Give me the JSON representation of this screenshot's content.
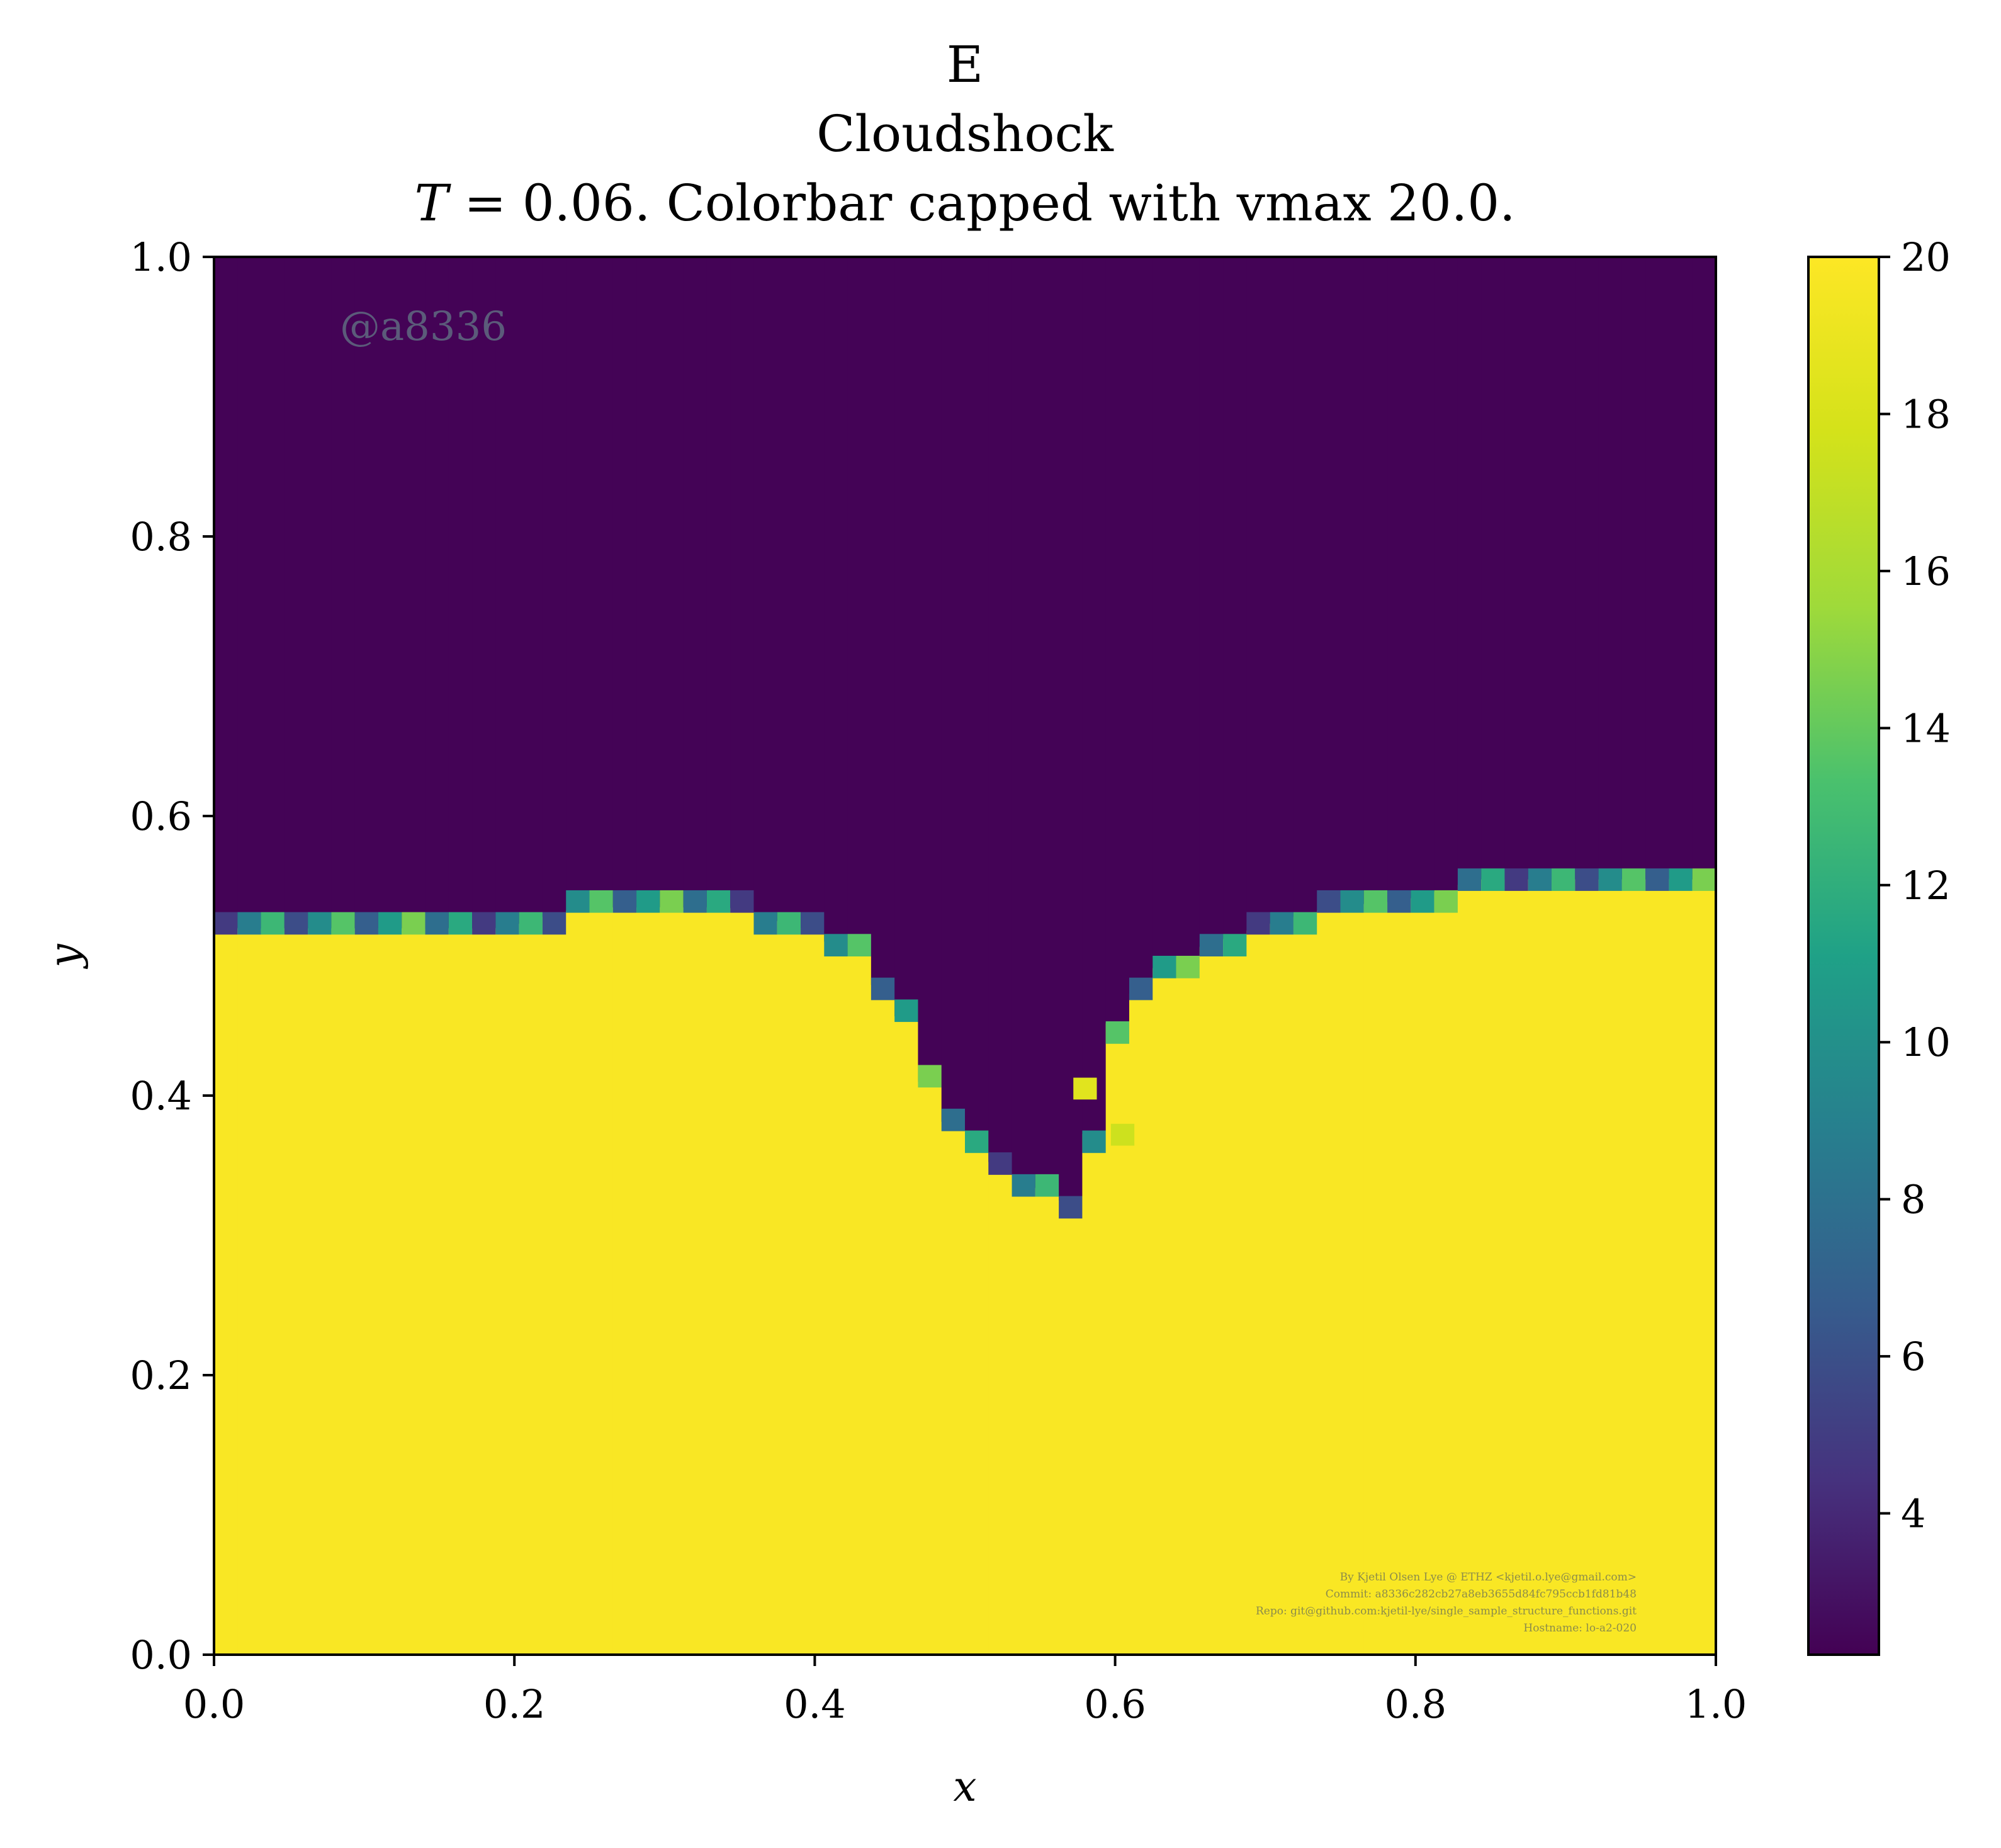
{
  "chart_data": {
    "type": "heatmap",
    "title": "E",
    "subtitle": "Cloudshock",
    "caption": "T = 0.06. Colorbar capped with vmax 20.0.",
    "caption_var": "T",
    "caption_rest": " = 0.06. Colorbar capped with vmax 20.0.",
    "xlabel": "x",
    "ylabel": "y",
    "xlim": [
      0.0,
      1.0
    ],
    "ylim": [
      0.0,
      1.0
    ],
    "x_ticks": [
      "0.0",
      "0.2",
      "0.4",
      "0.6",
      "0.8",
      "1.0"
    ],
    "y_ticks": [
      "0.0",
      "0.2",
      "0.4",
      "0.6",
      "0.8",
      "1.0"
    ],
    "colormap": "viridis",
    "colorbar": {
      "vmin": 2.2,
      "vmax": 20.0,
      "ticks": [
        "4",
        "6",
        "8",
        "10",
        "12",
        "14",
        "16",
        "18",
        "20"
      ]
    },
    "grid": false,
    "value_above_front": 2.3,
    "value_below_front": 19.8,
    "grid_resolution": 64,
    "front_boundary": {
      "x": [
        0.0,
        0.05,
        0.1,
        0.15,
        0.2,
        0.25,
        0.3,
        0.35,
        0.4,
        0.43,
        0.46,
        0.48,
        0.5,
        0.52,
        0.545,
        0.57,
        0.58,
        0.6,
        0.63,
        0.66,
        0.7,
        0.75,
        0.8,
        0.85,
        0.9,
        0.95,
        1.0
      ],
      "y": [
        0.52,
        0.52,
        0.52,
        0.52,
        0.52,
        0.535,
        0.535,
        0.535,
        0.52,
        0.5,
        0.46,
        0.4,
        0.37,
        0.355,
        0.34,
        0.325,
        0.34,
        0.45,
        0.49,
        0.505,
        0.52,
        0.535,
        0.54,
        0.555,
        0.555,
        0.555,
        0.555
      ]
    },
    "scatter_points": [
      {
        "x": 0.605,
        "y": 0.372,
        "value": 17.5
      },
      {
        "x": 0.58,
        "y": 0.405,
        "value": 18.5
      }
    ],
    "watermark": "@a8336",
    "credits": [
      "By Kjetil Olsen Lye @ ETHZ <kjetil.o.lye@gmail.com>",
      "Commit: a8336c282cb27a8eb3655d84fc795ccb1fd81b48",
      "Repo: git@github.com:kjetil-lye/single_sample_structure_functions.git",
      "Hostname: lo-a2-020"
    ]
  }
}
